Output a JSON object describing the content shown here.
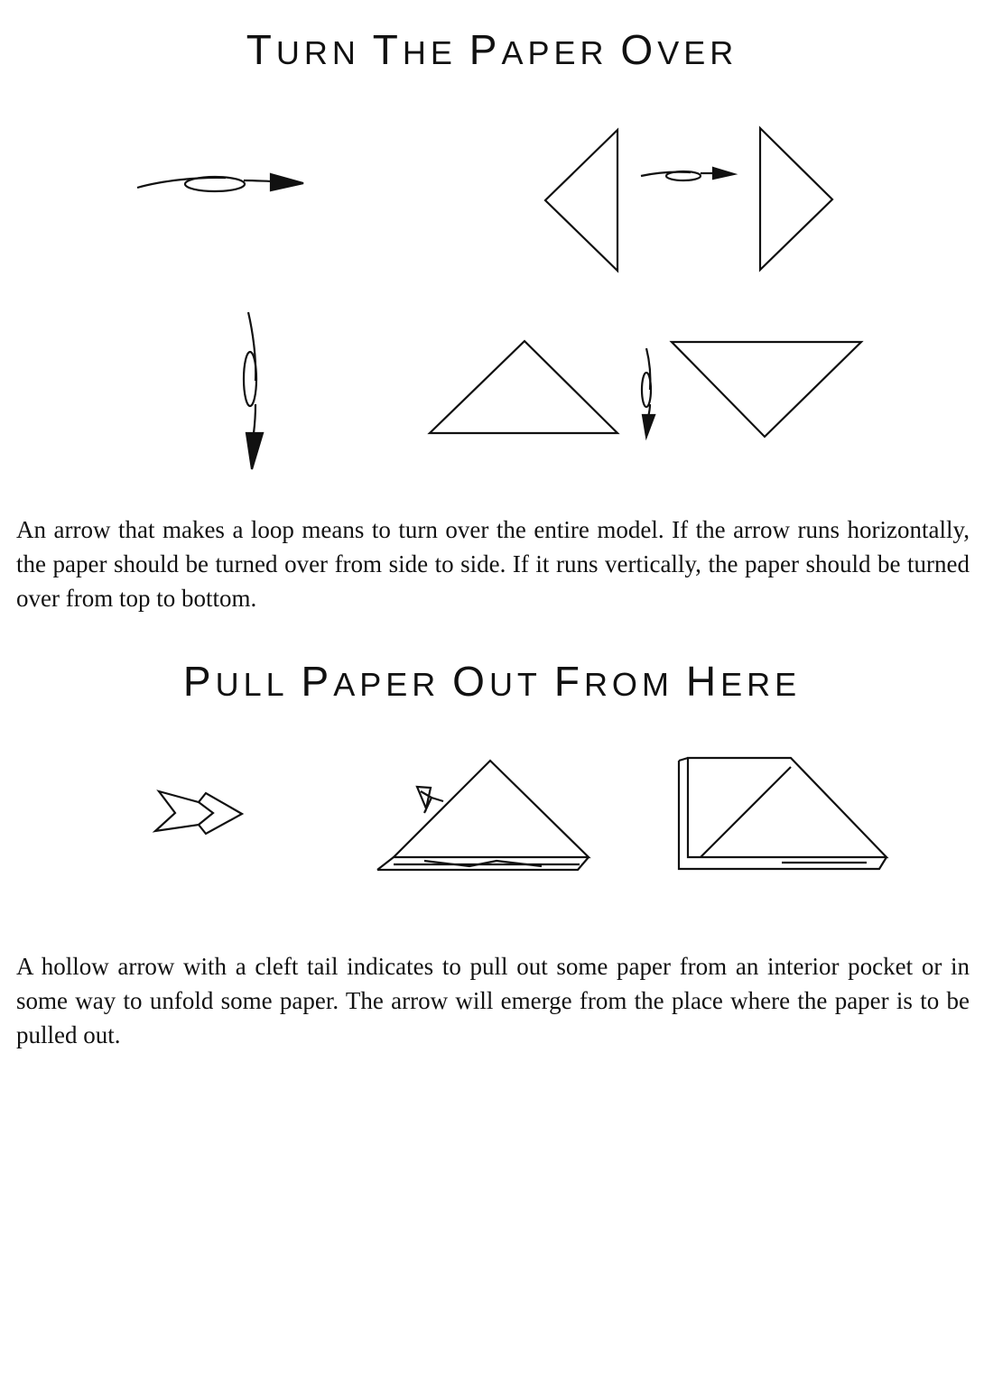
{
  "sections": [
    {
      "title": "Turn the Paper Over",
      "description": "An arrow that makes a loop means to turn over the entire model. If the arrow runs horizontally, the paper should be turned over from side to side. If it runs vertically, the paper should be turned over from top to bottom."
    },
    {
      "title": "Pull Paper Out from Here",
      "description": "A hollow arrow with a cleft tail indicates to pull out some paper from an interior pocket or in some way to unfold some paper. The arrow will emerge from the place where the paper is to be pulled out."
    }
  ],
  "icons": [
    "loop-arrow-horizontal-icon",
    "loop-arrow-vertical-icon",
    "hollow-cleft-arrow-icon",
    "triangle-left-icon",
    "triangle-right-icon",
    "triangle-up-icon",
    "triangle-down-icon",
    "folded-triangle-icon",
    "unfolded-square-icon"
  ]
}
